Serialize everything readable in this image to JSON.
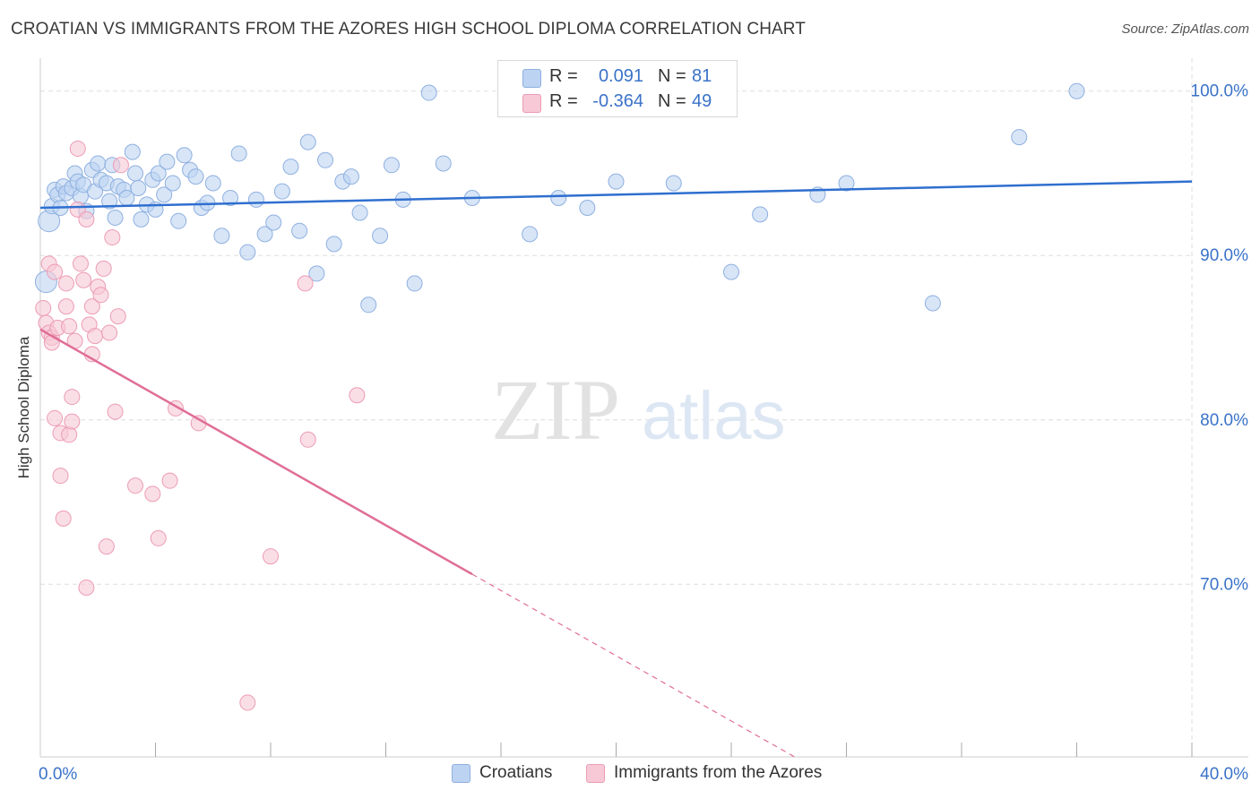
{
  "title": "CROATIAN VS IMMIGRANTS FROM THE AZORES HIGH SCHOOL DIPLOMA CORRELATION CHART",
  "source": "Source: ZipAtlas.com",
  "watermark": {
    "zip": "ZIP",
    "atlas": "atlas"
  },
  "legend_top": {
    "rows": [
      {
        "r_label": "R =",
        "r_value": "0.091",
        "n_label": "N =",
        "n_value": "81"
      },
      {
        "r_label": "R =",
        "r_value": "-0.364",
        "n_label": "N =",
        "n_value": "49"
      }
    ]
  },
  "legend_bottom": {
    "items": [
      "Croatians",
      "Immigrants from the Azores"
    ]
  },
  "colors": {
    "blue_fill": "#bcd3f2",
    "blue_stroke": "#8fb0e0",
    "blue_line": "#2f6fcf",
    "pink_fill": "#f7c8d6",
    "pink_stroke": "#ec9cb5",
    "pink_line": "#e06e97",
    "tick_label": "#3a72c8",
    "grid": "#dddddd"
  },
  "chart_data": {
    "type": "scatter",
    "title": "CROATIAN VS IMMIGRANTS FROM THE AZORES HIGH SCHOOL DIPLOMA CORRELATION CHART",
    "xlabel": "",
    "ylabel": "High School Diploma",
    "xlim": [
      0,
      40
    ],
    "ylim": [
      59.5,
      102
    ],
    "x_tick_labels": [
      {
        "value": 0,
        "label": "0.0%"
      },
      {
        "value": 40,
        "label": "40.0%"
      }
    ],
    "y_tick_labels": [
      {
        "value": 100,
        "label": "100.0%"
      },
      {
        "value": 90,
        "label": "90.0%"
      },
      {
        "value": 80,
        "label": "80.0%"
      },
      {
        "value": 70,
        "label": "70.0%"
      }
    ],
    "grid": true,
    "series": [
      {
        "name": "Croatians",
        "color": "blue",
        "trend": {
          "x_start": 0,
          "y_start": 92.9,
          "x_end": 40,
          "y_end": 94.5,
          "dashed_from": null
        },
        "points": [
          [
            0.3,
            92.1
          ],
          [
            0.4,
            93.0
          ],
          [
            0.5,
            94.0
          ],
          [
            0.6,
            93.7
          ],
          [
            0.7,
            92.9
          ],
          [
            0.8,
            94.2
          ],
          [
            0.9,
            93.8
          ],
          [
            1.1,
            94.1
          ],
          [
            1.2,
            95.0
          ],
          [
            1.3,
            94.5
          ],
          [
            1.4,
            93.6
          ],
          [
            1.5,
            94.3
          ],
          [
            1.6,
            92.7
          ],
          [
            1.8,
            95.2
          ],
          [
            1.9,
            93.9
          ],
          [
            2.0,
            95.6
          ],
          [
            2.1,
            94.6
          ],
          [
            2.3,
            94.4
          ],
          [
            2.4,
            93.3
          ],
          [
            2.5,
            95.5
          ],
          [
            2.6,
            92.3
          ],
          [
            2.7,
            94.2
          ],
          [
            2.9,
            94.0
          ],
          [
            3.0,
            93.5
          ],
          [
            3.2,
            96.3
          ],
          [
            3.3,
            95.0
          ],
          [
            3.4,
            94.1
          ],
          [
            3.5,
            92.2
          ],
          [
            3.7,
            93.1
          ],
          [
            3.9,
            94.6
          ],
          [
            4.0,
            92.8
          ],
          [
            4.1,
            95.0
          ],
          [
            4.3,
            93.7
          ],
          [
            4.4,
            95.7
          ],
          [
            4.6,
            94.4
          ],
          [
            4.8,
            92.1
          ],
          [
            5.0,
            96.1
          ],
          [
            5.2,
            95.2
          ],
          [
            5.4,
            94.8
          ],
          [
            5.6,
            92.9
          ],
          [
            5.8,
            93.2
          ],
          [
            6.0,
            94.4
          ],
          [
            6.3,
            91.2
          ],
          [
            6.6,
            93.5
          ],
          [
            6.9,
            96.2
          ],
          [
            7.2,
            90.2
          ],
          [
            7.5,
            93.4
          ],
          [
            7.8,
            91.3
          ],
          [
            8.1,
            92.0
          ],
          [
            8.4,
            93.9
          ],
          [
            8.7,
            95.4
          ],
          [
            9.0,
            91.5
          ],
          [
            9.3,
            96.9
          ],
          [
            9.6,
            88.9
          ],
          [
            9.9,
            95.8
          ],
          [
            10.2,
            90.7
          ],
          [
            10.5,
            94.5
          ],
          [
            10.8,
            94.8
          ],
          [
            11.1,
            92.6
          ],
          [
            11.4,
            87.0
          ],
          [
            11.8,
            91.2
          ],
          [
            12.2,
            95.5
          ],
          [
            12.6,
            93.4
          ],
          [
            13.0,
            88.3
          ],
          [
            13.5,
            99.9
          ],
          [
            14.0,
            95.6
          ],
          [
            15.0,
            93.5
          ],
          [
            17.0,
            91.3
          ],
          [
            17.5,
            99.9
          ],
          [
            18.0,
            93.5
          ],
          [
            19.0,
            92.9
          ],
          [
            20.0,
            94.5
          ],
          [
            22.0,
            94.4
          ],
          [
            24.0,
            89.0
          ],
          [
            25.0,
            92.5
          ],
          [
            27.0,
            93.7
          ],
          [
            28.0,
            94.4
          ],
          [
            31.0,
            87.1
          ],
          [
            34.0,
            97.2
          ],
          [
            36.0,
            100.0
          ],
          [
            0.2,
            88.4
          ]
        ]
      },
      {
        "name": "Immigrants from the Azores",
        "color": "pink",
        "trend": {
          "x_start": 0,
          "y_start": 85.5,
          "x_end": 26.2,
          "y_end": 59.5,
          "dashed_from": 15.0
        },
        "points": [
          [
            0.1,
            86.8
          ],
          [
            0.2,
            85.9
          ],
          [
            0.3,
            85.3
          ],
          [
            0.3,
            89.5
          ],
          [
            0.4,
            85.0
          ],
          [
            0.4,
            84.7
          ],
          [
            0.5,
            89.0
          ],
          [
            0.5,
            80.1
          ],
          [
            0.6,
            85.6
          ],
          [
            0.7,
            79.2
          ],
          [
            0.7,
            76.6
          ],
          [
            0.8,
            74.0
          ],
          [
            0.9,
            88.3
          ],
          [
            0.9,
            86.9
          ],
          [
            1.0,
            79.1
          ],
          [
            1.0,
            85.7
          ],
          [
            1.1,
            81.4
          ],
          [
            1.1,
            79.9
          ],
          [
            1.2,
            84.8
          ],
          [
            1.3,
            96.5
          ],
          [
            1.3,
            92.8
          ],
          [
            1.4,
            89.5
          ],
          [
            1.5,
            88.5
          ],
          [
            1.6,
            92.2
          ],
          [
            1.6,
            69.8
          ],
          [
            1.7,
            85.8
          ],
          [
            1.8,
            84.0
          ],
          [
            1.8,
            86.9
          ],
          [
            1.9,
            85.1
          ],
          [
            2.0,
            88.1
          ],
          [
            2.1,
            87.6
          ],
          [
            2.2,
            89.2
          ],
          [
            2.3,
            72.3
          ],
          [
            2.4,
            85.3
          ],
          [
            2.5,
            91.1
          ],
          [
            2.6,
            80.5
          ],
          [
            2.7,
            86.3
          ],
          [
            2.8,
            95.5
          ],
          [
            3.3,
            76.0
          ],
          [
            3.9,
            75.5
          ],
          [
            4.1,
            72.8
          ],
          [
            4.5,
            76.3
          ],
          [
            4.7,
            80.7
          ],
          [
            5.5,
            79.8
          ],
          [
            7.2,
            62.8
          ],
          [
            8.0,
            71.7
          ],
          [
            9.2,
            88.3
          ],
          [
            9.3,
            78.8
          ],
          [
            11.0,
            81.5
          ]
        ]
      }
    ]
  }
}
